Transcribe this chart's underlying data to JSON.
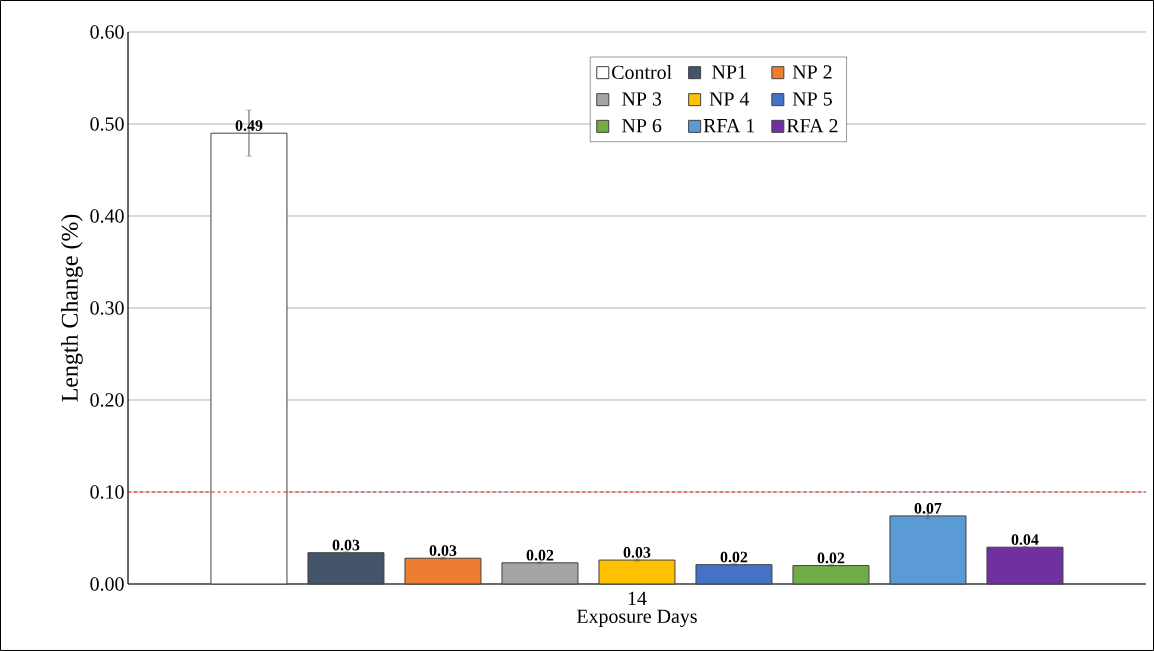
{
  "chart_data": {
    "type": "bar",
    "xlabel": "Exposure Days",
    "ylabel": "Length Change (%)",
    "categories": [
      "14"
    ],
    "series": [
      {
        "name": "Control",
        "color": "#ffffff",
        "values": [
          0.49
        ],
        "errors": [
          0.025
        ],
        "value_labels": [
          "0.49"
        ]
      },
      {
        "name": "NP1",
        "color": "#44546a",
        "values": [
          0.034
        ],
        "errors": [
          0.001
        ],
        "value_labels": [
          "0.03"
        ]
      },
      {
        "name": "NP 2",
        "color": "#ed7d31",
        "values": [
          0.028
        ],
        "errors": [
          0.001
        ],
        "value_labels": [
          "0.03"
        ]
      },
      {
        "name": "NP 3",
        "color": "#a5a5a5",
        "values": [
          0.023
        ],
        "errors": [
          0.001
        ],
        "value_labels": [
          "0.02"
        ]
      },
      {
        "name": "NP 4",
        "color": "#ffc000",
        "values": [
          0.026
        ],
        "errors": [
          0.001
        ],
        "value_labels": [
          "0.03"
        ]
      },
      {
        "name": "NP 5",
        "color": "#4472c4",
        "values": [
          0.021
        ],
        "errors": [
          0.001
        ],
        "value_labels": [
          "0.02"
        ]
      },
      {
        "name": "NP 6",
        "color": "#70ad47",
        "values": [
          0.02
        ],
        "errors": [
          0.001
        ],
        "value_labels": [
          "0.02"
        ]
      },
      {
        "name": "RFA 1",
        "color": "#5b9bd5",
        "values": [
          0.074
        ],
        "errors": [
          0.003
        ],
        "value_labels": [
          "0.07"
        ]
      },
      {
        "name": "RFA 2",
        "color": "#7030a0",
        "values": [
          0.04
        ],
        "errors": [
          0.001
        ],
        "value_labels": [
          "0.04"
        ]
      }
    ],
    "ylim": [
      0,
      0.6
    ],
    "yticks": [
      {
        "value": 0,
        "label": "0.00"
      },
      {
        "value": 0.1,
        "label": "0.10"
      },
      {
        "value": 0.2,
        "label": "0.20"
      },
      {
        "value": 0.3,
        "label": "0.30"
      },
      {
        "value": 0.4,
        "label": "0.40"
      },
      {
        "value": 0.5,
        "label": "0.50"
      },
      {
        "value": 0.6,
        "label": "0.60"
      }
    ],
    "grid": "y",
    "legend": "top",
    "ref_lines": [
      {
        "axis": "y",
        "value": 0.1,
        "color": "#ff0000",
        "line_style": "dashed"
      }
    ]
  }
}
